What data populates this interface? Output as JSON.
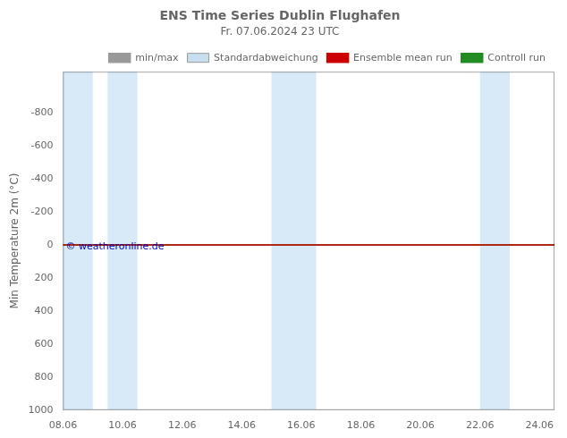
{
  "chart_data": {
    "type": "line",
    "title": "ENS Time Series Dublin Flughafen",
    "subtitle": "Fr. 07.06.2024 23 UTC",
    "ylabel": "Min Temperature 2m (°C)",
    "xlim": [
      8.06,
      24.56
    ],
    "xticks": [
      {
        "value": 8.06,
        "label": "08.06"
      },
      {
        "value": 10.06,
        "label": "10.06"
      },
      {
        "value": 12.06,
        "label": "12.06"
      },
      {
        "value": 14.06,
        "label": "14.06"
      },
      {
        "value": 16.06,
        "label": "16.06"
      },
      {
        "value": 18.06,
        "label": "18.06"
      },
      {
        "value": 20.06,
        "label": "20.06"
      },
      {
        "value": 22.06,
        "label": "22.06"
      },
      {
        "value": 24.06,
        "label": "24.06"
      }
    ],
    "ylim": [
      1000,
      -1050
    ],
    "yticks": [
      -800,
      -600,
      -400,
      -200,
      0,
      200,
      400,
      600,
      800,
      1000
    ],
    "grid": false,
    "legend": "upper right",
    "bands": [
      [
        8.06,
        9.06
      ],
      [
        9.56,
        10.56
      ],
      [
        15.06,
        16.56
      ],
      [
        22.06,
        23.06
      ]
    ],
    "band_color": "#d8eaf8",
    "series": [
      {
        "name": "min/max",
        "color": "#999999",
        "values": []
      },
      {
        "name": "Standardabweichung",
        "color": "#c8dff0",
        "type": "area",
        "values": []
      },
      {
        "name": "Ensemble mean run",
        "color": "#cc0000",
        "y": 0
      },
      {
        "name": "Controll run",
        "color": "#228B22",
        "y": 0
      }
    ],
    "annotations": [
      {
        "text": "© weatheronline.de",
        "x": 8.15,
        "y": 55,
        "color": "#0000bb"
      }
    ]
  }
}
